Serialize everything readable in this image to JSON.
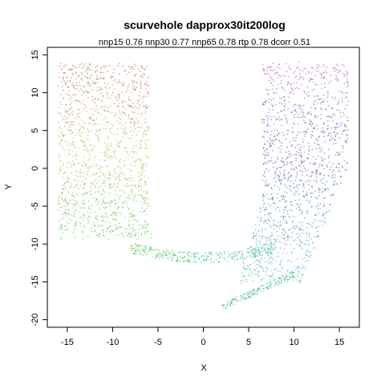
{
  "chart_data": {
    "type": "scatter",
    "title": "scurvehole dapprox30it200log",
    "subtitle": "nnp15 0.76 nnp30 0.77 nnp65 0.78 rtp 0.78 dcorr 0.51",
    "xlabel": "X",
    "ylabel": "Y",
    "xlim": [
      -17.2,
      17.2
    ],
    "ylim": [
      -21.0,
      16.0
    ],
    "x_ticks": [
      -15,
      -10,
      -5,
      0,
      5,
      10,
      15
    ],
    "y_ticks": [
      -20,
      -15,
      -10,
      -5,
      0,
      5,
      10,
      15
    ],
    "grid": false,
    "legend": "none",
    "point_color_scale": "rainbow hue along the curve: red (top-left) through orange, yellow-green, green, teal, blue to purple (top-right)",
    "series": [
      {
        "shape": "left vertical band",
        "x_range": [
          -16,
          -6
        ],
        "y_range": [
          -10,
          14
        ],
        "color_top": "#c0504a",
        "color_mid": "#b8c04a",
        "color_bottom": "#55bb44"
      },
      {
        "shape": "bottom bridge",
        "x_range": [
          -8,
          8
        ],
        "y_range": [
          -13,
          -9
        ],
        "color_left": "#44bb44",
        "color_right": "#44c8b0"
      },
      {
        "shape": "right vertical band",
        "x_range": [
          5,
          16
        ],
        "y_range": [
          -16,
          14
        ],
        "color_top": "#b04ac8",
        "color_mid": "#4a60c0",
        "color_bottom": "#44c0c0"
      },
      {
        "shape": "lower right tail",
        "x_range": [
          2,
          11
        ],
        "y_range": [
          -19,
          -13
        ],
        "color": "#40c090"
      }
    ]
  }
}
